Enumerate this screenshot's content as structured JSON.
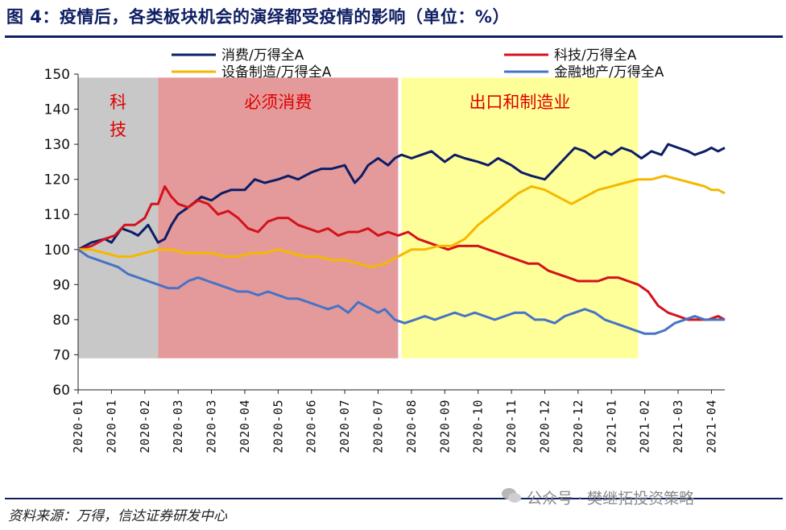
{
  "figure": {
    "title": "图 4：疫情后，各类板块机会的演绎都受疫情的影响（单位：%）",
    "source": "资料来源：万得，信达证券研发中心",
    "watermark": "公众号 · 樊继拓投资策略"
  },
  "chart_data": {
    "type": "line",
    "title": "疫情后，各类板块机会的演绎都受疫情的影响",
    "ylabel": "",
    "ylim": [
      60,
      150
    ],
    "yticks": [
      60,
      70,
      80,
      90,
      100,
      110,
      120,
      130,
      140,
      150
    ],
    "x_tick_labels": [
      "2020-01",
      "2020-01",
      "2020-02",
      "2020-03",
      "2020-03",
      "2020-04",
      "2020-05",
      "2020-06",
      "2020-07",
      "2020-07",
      "2020-08",
      "2020-09",
      "2020-10",
      "2020-11",
      "2020-12",
      "2020-12",
      "2021-01",
      "2021-02",
      "2021-03",
      "2021-04"
    ],
    "x_tick_t": [
      0,
      1,
      2,
      3,
      4,
      5,
      6,
      7,
      8,
      9,
      10,
      11,
      12,
      13,
      14,
      15,
      16,
      17,
      18,
      19
    ],
    "x_range": [
      0,
      19.4
    ],
    "phases": [
      {
        "label": "科技",
        "start": 0,
        "end": 2.4,
        "color": "#c8c8c8",
        "text": [
          "科",
          "技"
        ]
      },
      {
        "label": "必须消费",
        "start": 2.4,
        "end": 9.6,
        "color": "#e49a9a",
        "text": [
          "必须消费"
        ]
      },
      {
        "label": "出口和制造业",
        "start": 9.7,
        "end": 16.8,
        "color": "#ffff99",
        "text": [
          "出口和制造业"
        ]
      }
    ],
    "shade_range": [
      69,
      149
    ],
    "series": [
      {
        "name": "消费/万得全A",
        "color": "#0c1d66",
        "t": [
          0,
          0.4,
          0.8,
          1.0,
          1.3,
          1.6,
          1.8,
          2.1,
          2.4,
          2.6,
          2.8,
          3.0,
          3.3,
          3.7,
          4.0,
          4.3,
          4.6,
          5.0,
          5.3,
          5.6,
          6.0,
          6.3,
          6.6,
          7.0,
          7.3,
          7.6,
          8.0,
          8.3,
          8.5,
          8.7,
          9.0,
          9.3,
          9.5,
          9.7,
          10.0,
          10.3,
          10.6,
          11.0,
          11.3,
          11.6,
          12.0,
          12.3,
          12.6,
          13.0,
          13.3,
          13.6,
          14.0,
          14.3,
          14.6,
          14.9,
          15.2,
          15.5,
          15.8,
          16.0,
          16.3,
          16.6,
          16.9,
          17.2,
          17.5,
          17.7,
          18.0,
          18.3,
          18.5,
          18.8,
          19.0,
          19.2,
          19.4
        ],
        "values": [
          100,
          102,
          103,
          102,
          106,
          105,
          104,
          107,
          102,
          103,
          107,
          110,
          112,
          115,
          114,
          116,
          117,
          117,
          120,
          119,
          120,
          121,
          120,
          122,
          123,
          123,
          124,
          119,
          121,
          124,
          126,
          124,
          126,
          127,
          126,
          127,
          128,
          125,
          127,
          126,
          125,
          124,
          126,
          124,
          122,
          121,
          120,
          123,
          126,
          129,
          128,
          126,
          128,
          127,
          129,
          128,
          126,
          128,
          127,
          130,
          129,
          128,
          127,
          128,
          129,
          128,
          129
        ]
      },
      {
        "name": "科技/万得全A",
        "color": "#d4121c",
        "t": [
          0,
          0.4,
          0.8,
          1.1,
          1.4,
          1.7,
          2.0,
          2.2,
          2.4,
          2.6,
          2.8,
          3.0,
          3.3,
          3.6,
          3.9,
          4.2,
          4.5,
          4.8,
          5.1,
          5.4,
          5.7,
          6.0,
          6.3,
          6.6,
          6.9,
          7.2,
          7.5,
          7.8,
          8.1,
          8.4,
          8.7,
          9.0,
          9.3,
          9.6,
          9.9,
          10.2,
          10.5,
          10.8,
          11.1,
          11.4,
          11.7,
          12.0,
          12.3,
          12.6,
          12.9,
          13.2,
          13.5,
          13.8,
          14.1,
          14.4,
          14.7,
          15.0,
          15.3,
          15.6,
          15.9,
          16.2,
          16.5,
          16.8,
          17.1,
          17.4,
          17.7,
          18.0,
          18.3,
          18.6,
          18.9,
          19.2,
          19.4
        ],
        "values": [
          100,
          101,
          103,
          104,
          107,
          107,
          109,
          113,
          113,
          118,
          115,
          113,
          112,
          114,
          113,
          110,
          111,
          109,
          106,
          105,
          108,
          109,
          109,
          107,
          106,
          105,
          106,
          104,
          105,
          105,
          106,
          104,
          105,
          104,
          105,
          103,
          102,
          101,
          100,
          101,
          101,
          101,
          100,
          99,
          98,
          97,
          96,
          96,
          94,
          93,
          92,
          91,
          91,
          91,
          92,
          92,
          91,
          90,
          88,
          84,
          82,
          81,
          80,
          80,
          80,
          81,
          80
        ]
      },
      {
        "name": "设备制造/万得全A",
        "color": "#f5b800",
        "t": [
          0,
          0.4,
          0.8,
          1.2,
          1.6,
          2.0,
          2.4,
          2.8,
          3.2,
          3.6,
          4.0,
          4.4,
          4.8,
          5.2,
          5.6,
          6.0,
          6.4,
          6.8,
          7.2,
          7.6,
          8.0,
          8.4,
          8.8,
          9.2,
          9.6,
          10.0,
          10.4,
          10.8,
          11.2,
          11.6,
          12.0,
          12.4,
          12.8,
          13.2,
          13.6,
          14.0,
          14.4,
          14.8,
          15.2,
          15.6,
          16.0,
          16.4,
          16.8,
          17.2,
          17.6,
          18.0,
          18.4,
          18.8,
          19.0,
          19.2,
          19.4
        ],
        "values": [
          100,
          100,
          99,
          98,
          98,
          99,
          100,
          100,
          99,
          99,
          99,
          98,
          98,
          99,
          99,
          100,
          99,
          98,
          98,
          97,
          97,
          96,
          95,
          96,
          98,
          100,
          100,
          101,
          101,
          103,
          107,
          110,
          113,
          116,
          118,
          117,
          115,
          113,
          115,
          117,
          118,
          119,
          120,
          120,
          121,
          120,
          119,
          118,
          117,
          117,
          116
        ]
      },
      {
        "name": "金融地产/万得全A",
        "color": "#4673c6",
        "t": [
          0,
          0.3,
          0.6,
          0.9,
          1.2,
          1.5,
          1.8,
          2.1,
          2.4,
          2.7,
          3.0,
          3.3,
          3.6,
          3.9,
          4.2,
          4.5,
          4.8,
          5.1,
          5.4,
          5.7,
          6.0,
          6.3,
          6.6,
          6.9,
          7.2,
          7.5,
          7.8,
          8.1,
          8.4,
          8.6,
          8.8,
          9.0,
          9.2,
          9.5,
          9.8,
          10.1,
          10.4,
          10.7,
          11.0,
          11.3,
          11.6,
          11.9,
          12.2,
          12.5,
          12.8,
          13.1,
          13.4,
          13.7,
          14.0,
          14.3,
          14.6,
          14.9,
          15.2,
          15.5,
          15.8,
          16.1,
          16.4,
          16.7,
          17.0,
          17.3,
          17.6,
          17.9,
          18.2,
          18.5,
          18.8,
          19.1,
          19.4
        ],
        "values": [
          100,
          98,
          97,
          96,
          95,
          93,
          92,
          91,
          90,
          89,
          89,
          91,
          92,
          91,
          90,
          89,
          88,
          88,
          87,
          88,
          87,
          86,
          86,
          85,
          84,
          83,
          84,
          82,
          85,
          84,
          83,
          82,
          83,
          80,
          79,
          80,
          81,
          80,
          81,
          82,
          81,
          82,
          81,
          80,
          81,
          82,
          82,
          80,
          80,
          79,
          81,
          82,
          83,
          82,
          80,
          79,
          78,
          77,
          76,
          76,
          77,
          79,
          80,
          81,
          80,
          80,
          80
        ]
      }
    ]
  }
}
